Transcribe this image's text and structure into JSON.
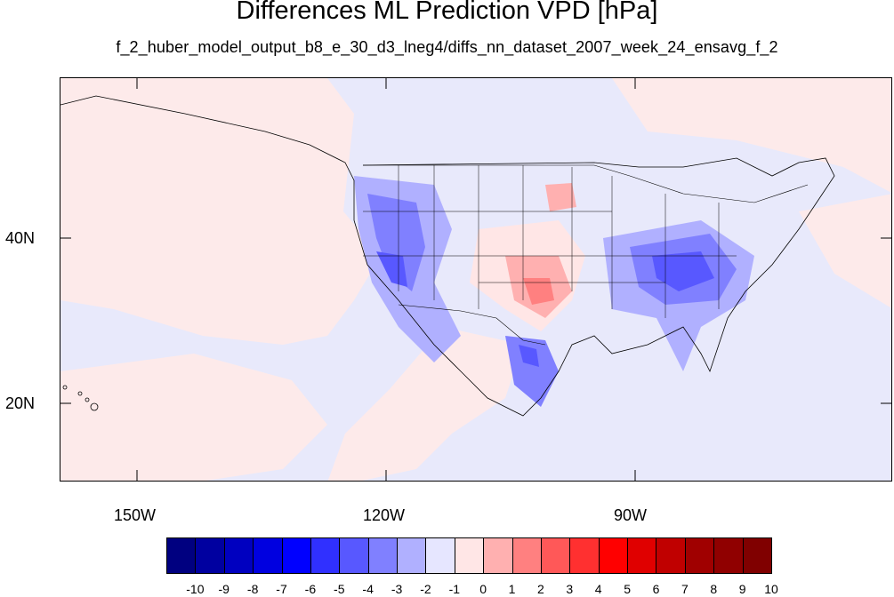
{
  "title": "Differences ML Prediction VPD [hPa]",
  "subtitle": "f_2_huber_model_output_b8_e_30_d3_lneg4/diffs_nn_dataset_2007_week_24_ensavg_f_2",
  "map": {
    "lat_labels": [
      "40N",
      "20N"
    ],
    "lon_labels": [
      "150W",
      "120W",
      "90W"
    ]
  },
  "colorbar": {
    "levels": [
      "-10",
      "-9",
      "-8",
      "-7",
      "-6",
      "-5",
      "-4",
      "-3",
      "-2",
      "-1",
      "0",
      "1",
      "2",
      "3",
      "4",
      "5",
      "6",
      "7",
      "8",
      "9",
      "10"
    ],
    "colors": [
      "#000080",
      "#0000a0",
      "#0000c0",
      "#0000e0",
      "#0000ff",
      "#3030ff",
      "#5858ff",
      "#8080ff",
      "#b0b0ff",
      "#e6e6ff",
      "#ffe6e6",
      "#ffb0b0",
      "#ff8080",
      "#ff5858",
      "#ff3030",
      "#ff0000",
      "#e00000",
      "#c00000",
      "#a00000",
      "#900000",
      "#800000"
    ]
  },
  "colors": {
    "ocean_bias": "#e8e9fb",
    "pacific_bias": "#fdeaea"
  }
}
